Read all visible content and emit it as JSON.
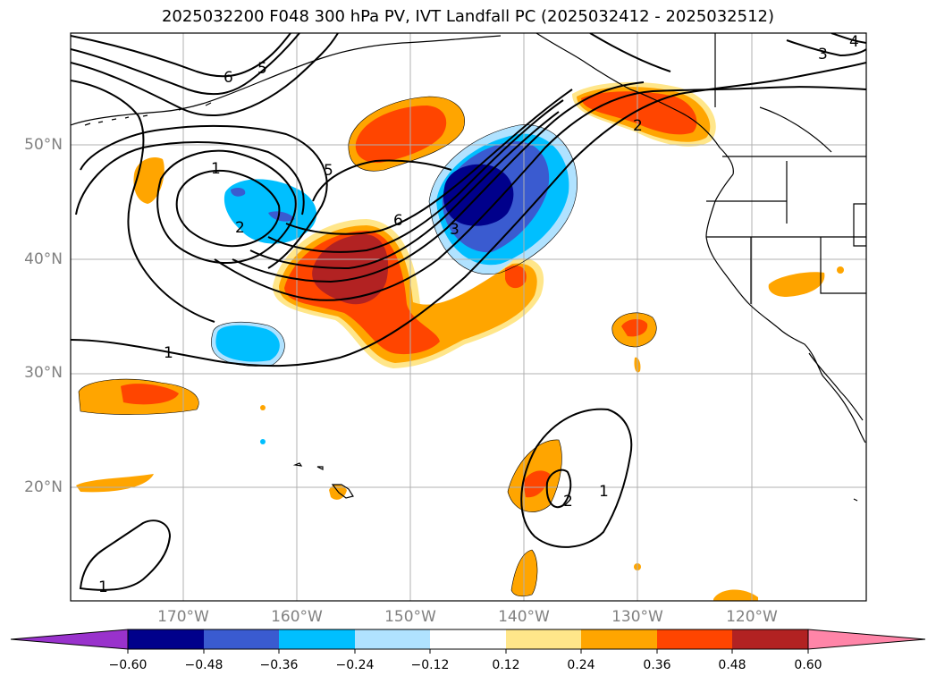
{
  "title": "2025032200 F048 300 hPa PV, IVT Landfall PC (2025032412 - 2025032512)",
  "lat_labels": [
    "50°N",
    "40°N",
    "30°N",
    "20°N"
  ],
  "lon_labels": [
    "170°W",
    "160°W",
    "150°W",
    "140°W",
    "130°W",
    "120°W"
  ],
  "contour_labels": [
    "1",
    "2",
    "3",
    "4",
    "5",
    "6"
  ],
  "colorbar": {
    "ticks": [
      "−0.60",
      "−0.48",
      "−0.36",
      "−0.24",
      "−0.12",
      "0.12",
      "0.24",
      "0.36",
      "0.48",
      "0.60"
    ],
    "colors": [
      "#9932cc",
      "#00008b",
      "#3a5bd0",
      "#00bfff",
      "#b0e2ff",
      "#ffffff",
      "#ffe68a",
      "#ffa500",
      "#ff4500",
      "#b22222",
      "#ff85a8"
    ]
  }
}
